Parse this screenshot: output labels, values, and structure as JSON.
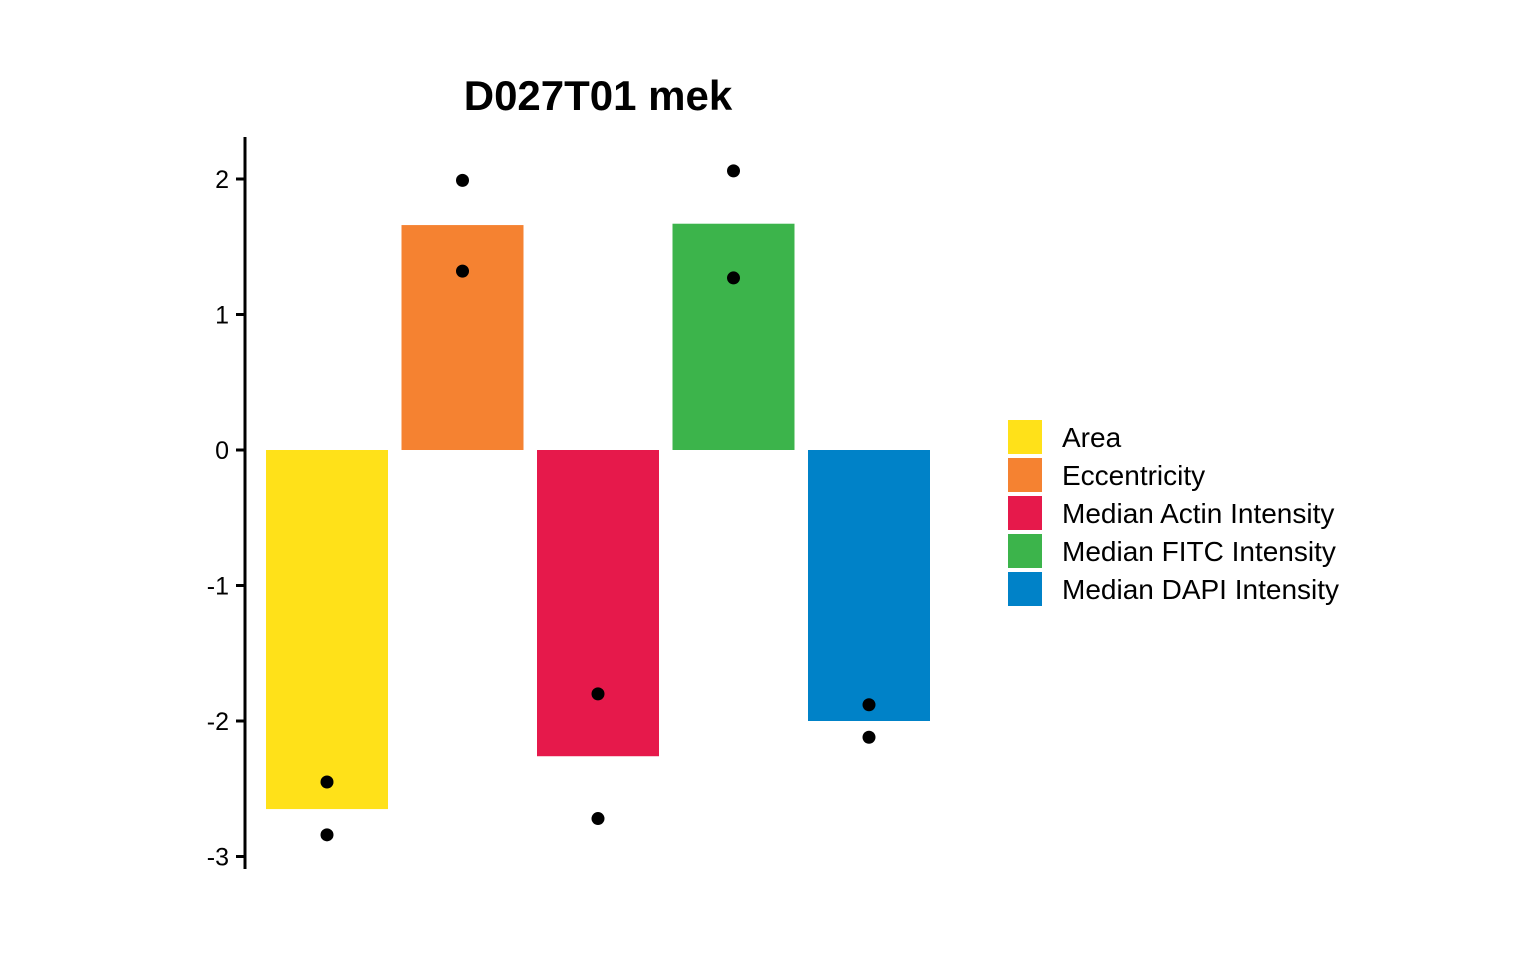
{
  "chart_data": {
    "type": "bar",
    "title": "D027T01 mek",
    "xlabel": "",
    "ylabel": "",
    "ylim": [
      -3.1,
      2.3
    ],
    "yticks": [
      "2",
      "1",
      "0",
      "-1",
      "-2",
      "-3"
    ],
    "ytick_values": [
      2,
      1,
      0,
      -1,
      -2,
      -3
    ],
    "grid": false,
    "legend_position": "right",
    "categories": [
      "Area",
      "Eccentricity",
      "Median Actin Intensity",
      "Median FITC Intensity",
      "Median DAPI Intensity"
    ],
    "colors": [
      "#FFE119",
      "#F58231",
      "#E6194B",
      "#3CB44B",
      "#0082C8"
    ],
    "values": [
      -2.65,
      1.66,
      -2.26,
      1.67,
      -2.0
    ],
    "points": [
      [
        -2.45,
        -2.84
      ],
      [
        1.99,
        1.32
      ],
      [
        -1.8,
        -2.72
      ],
      [
        2.06,
        1.27
      ],
      [
        -1.88,
        -2.12
      ]
    ]
  }
}
